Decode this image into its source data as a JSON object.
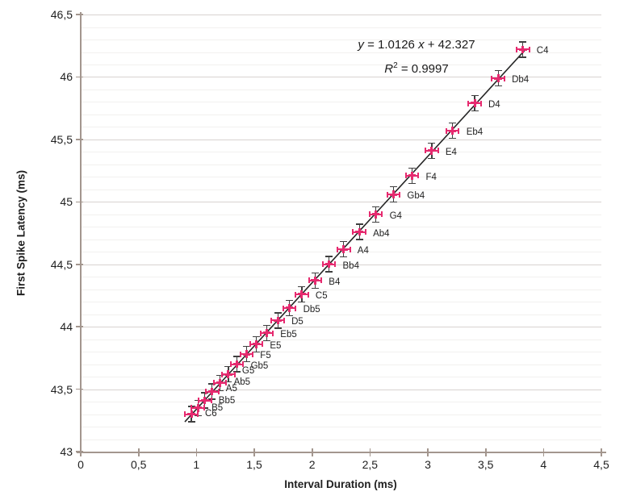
{
  "chart_data": {
    "type": "scatter",
    "title": "",
    "xlabel": "Interval Duration (ms)",
    "ylabel": "First Spike Latency (ms)",
    "xlim": [
      0,
      4.5
    ],
    "ylim": [
      43,
      46.5
    ],
    "x_ticks": [
      "0",
      "0,5",
      "1",
      "1,5",
      "2",
      "2,5",
      "3",
      "3,5",
      "4",
      "4,5"
    ],
    "x_tick_values": [
      0,
      0.5,
      1,
      1.5,
      2,
      2.5,
      3,
      3.5,
      4,
      4.5
    ],
    "y_ticks": [
      "43",
      "43,5",
      "44",
      "44,5",
      "45",
      "45,5",
      "46",
      "46,5"
    ],
    "y_tick_values": [
      43,
      43.5,
      44,
      44.5,
      45,
      45.5,
      46,
      46.5
    ],
    "minor_y_step": 0.1,
    "grid": "horizontal major and minor gridlines only",
    "legend_position": "none",
    "x_error": 0.05,
    "y_error": 0.06,
    "points": [
      {
        "label": "C4",
        "x": 3.822,
        "y": 46.22
      },
      {
        "label": "Db4",
        "x": 3.608,
        "y": 45.99
      },
      {
        "label": "D4",
        "x": 3.405,
        "y": 45.79
      },
      {
        "label": "Eb4",
        "x": 3.214,
        "y": 45.57
      },
      {
        "label": "E4",
        "x": 3.034,
        "y": 45.41
      },
      {
        "label": "F4",
        "x": 2.864,
        "y": 45.21
      },
      {
        "label": "Gb4",
        "x": 2.703,
        "y": 45.06
      },
      {
        "label": "G4",
        "x": 2.551,
        "y": 44.9
      },
      {
        "label": "Ab4",
        "x": 2.408,
        "y": 44.76
      },
      {
        "label": "A4",
        "x": 2.273,
        "y": 44.62
      },
      {
        "label": "Bb4",
        "x": 2.145,
        "y": 44.5
      },
      {
        "label": "B4",
        "x": 2.025,
        "y": 44.37
      },
      {
        "label": "C5",
        "x": 1.911,
        "y": 44.26
      },
      {
        "label": "Db5",
        "x": 1.804,
        "y": 44.15
      },
      {
        "label": "D5",
        "x": 1.703,
        "y": 44.05
      },
      {
        "label": "Eb5",
        "x": 1.607,
        "y": 43.95
      },
      {
        "label": "E5",
        "x": 1.517,
        "y": 43.86
      },
      {
        "label": "F5",
        "x": 1.432,
        "y": 43.78
      },
      {
        "label": "Gb5",
        "x": 1.351,
        "y": 43.7
      },
      {
        "label": "G5",
        "x": 1.276,
        "y": 43.62,
        "label_dy": -4
      },
      {
        "label": "Ab5",
        "x": 1.204,
        "y": 43.55,
        "label_dy": -1
      },
      {
        "label": "A5",
        "x": 1.136,
        "y": 43.48,
        "label_dy": -4
      },
      {
        "label": "Bb5",
        "x": 1.073,
        "y": 43.41,
        "label_dy": 0
      },
      {
        "label": "B5",
        "x": 1.012,
        "y": 43.35,
        "label_dy": 0
      },
      {
        "label": "C6",
        "x": 0.956,
        "y": 43.3,
        "label_dy": -1
      }
    ],
    "trendline": {
      "slope": 1.0126,
      "intercept": 42.327,
      "x_start": 0.9,
      "x_end": 3.84,
      "eq": {
        "lhs": "y",
        "mid": " = 1.0126 ",
        "var": "x",
        "tail": " + 42.327"
      },
      "r": {
        "sym": "R",
        "sup": "2",
        "tail": " = 0.9997"
      }
    },
    "colors": {
      "marker": "#E62A6F",
      "y_error_bar": "#3F3F3F",
      "trend_line": "#262626",
      "axis": "#A3968E",
      "grid_major": "#D8D3D0",
      "grid_minor": "#F2F0EF",
      "text": "#1F1F1F"
    }
  }
}
